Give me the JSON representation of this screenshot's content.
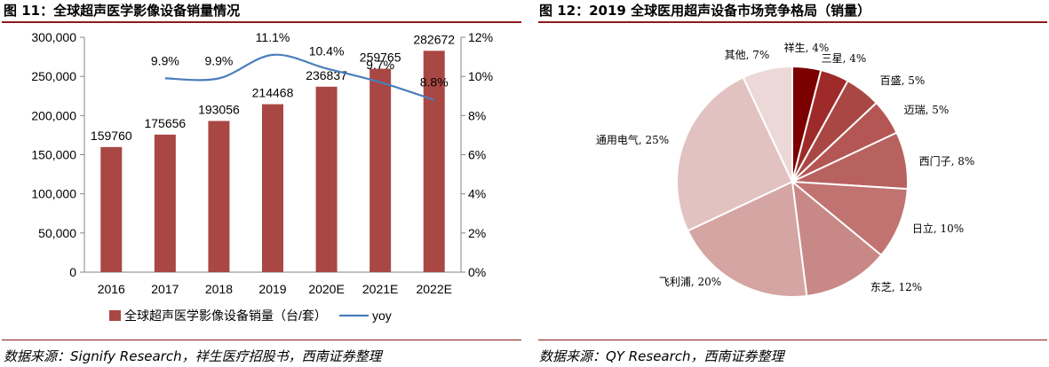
{
  "left": {
    "title": "图 11：全球超声医学影像设备销量情况",
    "source": "数据来源：Signify Research，祥生医疗招股书，西南证券整理"
  },
  "right": {
    "title": "图 12：2019 全球医用超声设备市场竞争格局（销量）",
    "source": "数据来源：QY Research，西南证券整理"
  },
  "colors": {
    "bar": "#a94744",
    "line": "#4a7ebb",
    "rule": "#8b1c1c",
    "axis": "#868686"
  },
  "chart_data": [
    {
      "type": "bar",
      "categories": [
        "2016",
        "2017",
        "2018",
        "2019",
        "2020E",
        "2021E",
        "2022E"
      ],
      "series": [
        {
          "name": "全球超声医学影像设备销量（台/套）",
          "type": "bar",
          "axis": "left",
          "values": [
            159760,
            175656,
            193056,
            214468,
            236837,
            259765,
            282672
          ],
          "labels": [
            "159760",
            "175656",
            "193056",
            "214468",
            "236837",
            "259765",
            "282672"
          ]
        },
        {
          "name": "yoy",
          "type": "line",
          "axis": "right",
          "values": [
            null,
            9.9,
            9.9,
            11.1,
            10.4,
            9.7,
            8.8
          ],
          "labels": [
            "",
            "9.9%",
            "9.9%",
            "11.1%",
            "10.4%",
            "9.7%",
            "8.8%"
          ]
        }
      ],
      "y_left": {
        "lim": [
          0,
          300000
        ],
        "ticks": [
          "0",
          "50,000",
          "100,000",
          "150,000",
          "200,000",
          "250,000",
          "300,000"
        ]
      },
      "y_right": {
        "lim": [
          0,
          12
        ],
        "ticks": [
          "0%",
          "2%",
          "4%",
          "6%",
          "8%",
          "10%",
          "12%"
        ]
      },
      "legend_position": "bottom",
      "grid": false
    },
    {
      "type": "pie",
      "slices": [
        {
          "name": "祥生",
          "value": 4,
          "label": "祥生, 4%",
          "color": "#7b0000"
        },
        {
          "name": "三星",
          "value": 4,
          "label": "三星, 4%",
          "color": "#9e2a2a"
        },
        {
          "name": "百盛",
          "value": 5,
          "label": "百盛, 5%",
          "color": "#a94744"
        },
        {
          "name": "迈瑞",
          "value": 5,
          "label": "迈瑞, 5%",
          "color": "#b45654"
        },
        {
          "name": "西门子",
          "value": 8,
          "label": "西门子, 8%",
          "color": "#b86260"
        },
        {
          "name": "日立",
          "value": 10,
          "label": "日立, 10%",
          "color": "#c07370"
        },
        {
          "name": "东芝",
          "value": 12,
          "label": "东芝, 12%",
          "color": "#c88886"
        },
        {
          "name": "飞利浦",
          "value": 20,
          "label": "飞利浦, 20%",
          "color": "#d4a5a3"
        },
        {
          "name": "通用电气",
          "value": 25,
          "label": "通用电气, 25%",
          "color": "#e2c2c1"
        },
        {
          "name": "其他",
          "value": 7,
          "label": "其他, 7%",
          "color": "#ecd8d7"
        }
      ],
      "start": "12 o'clock",
      "direction": "clockwise",
      "legend_position": "none"
    }
  ]
}
